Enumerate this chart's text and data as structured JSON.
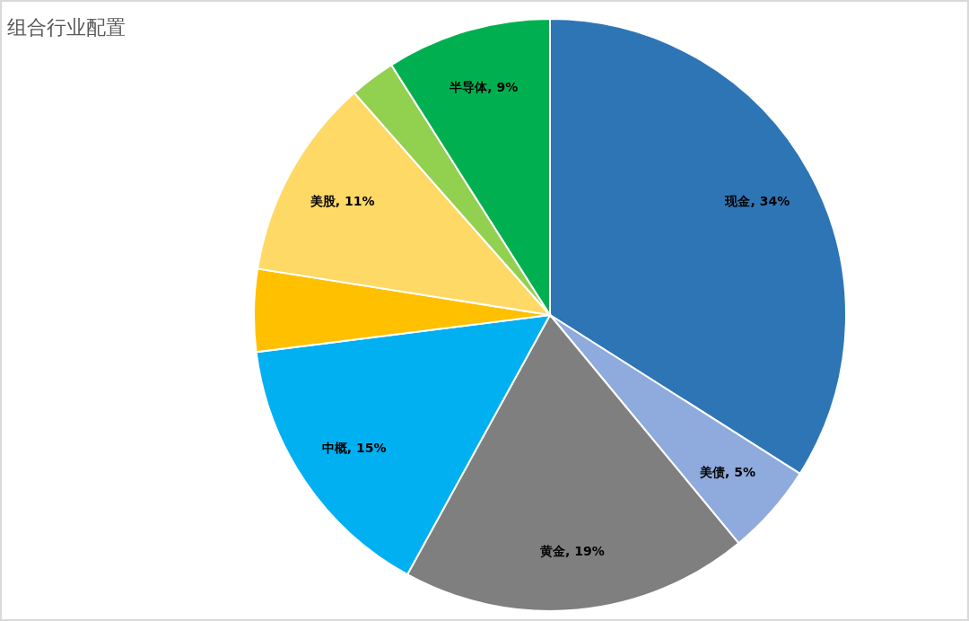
{
  "chart_data": {
    "type": "pie",
    "title": "组合行业配置",
    "categories": [
      "现金",
      "美债",
      "黄金",
      "中概",
      null,
      "美股",
      null,
      "半导体"
    ],
    "values": [
      34,
      5,
      19,
      15,
      4.5,
      11,
      2.5,
      9
    ],
    "colors": [
      "#2e75b6",
      "#8faadc",
      "#7f7f7f",
      "#00b0f0",
      "#ffc000",
      "#ffd966",
      "#92d050",
      "#00b050"
    ],
    "value_labels": [
      ", 34%",
      ", 5%",
      ", 19%",
      ", 15%",
      null,
      ", 11%",
      null,
      ", 9%"
    ]
  }
}
